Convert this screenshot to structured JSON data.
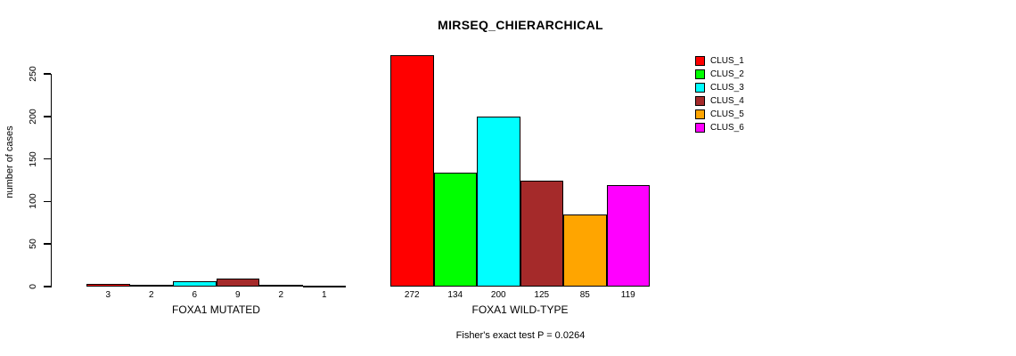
{
  "chart_data": {
    "type": "bar",
    "title": "MIRSEQ_CHIERARCHICAL",
    "ylabel": "number of cases",
    "xlabel": "",
    "ylim": [
      0,
      250
    ],
    "yticks": [
      0,
      50,
      100,
      150,
      200,
      250
    ],
    "grid": false,
    "groups": [
      {
        "label": "FOXA1 MUTATED",
        "values": [
          3,
          2,
          6,
          9,
          2,
          1
        ]
      },
      {
        "label": "FOXA1 WILD-TYPE",
        "values": [
          272,
          134,
          200,
          125,
          85,
          119
        ]
      }
    ],
    "series_colors": [
      "#ff0000",
      "#00ff00",
      "#00ffff",
      "#a52a2a",
      "#ffa500",
      "#ff00ff"
    ],
    "legend": {
      "position": "right",
      "entries": [
        "CLUS_1",
        "CLUS_2",
        "CLUS_3",
        "CLUS_4",
        "CLUS_5",
        "CLUS_6"
      ]
    },
    "annotation": "Fisher's exact test P = 0.0264"
  }
}
